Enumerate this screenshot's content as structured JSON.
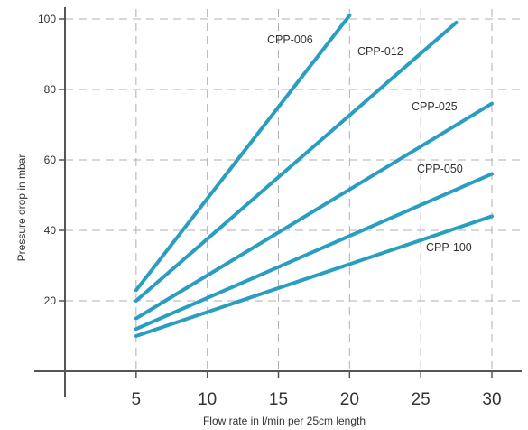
{
  "chart_data": {
    "type": "line",
    "xlabel": "Flow rate in  l/min per 25cm length",
    "ylabel": "Pressure drop in mbar",
    "xlim": [
      0,
      31.5
    ],
    "ylim": [
      0,
      102
    ],
    "x_ticks": [
      5,
      10,
      15,
      20,
      25,
      30
    ],
    "y_ticks": [
      20,
      40,
      60,
      80,
      100
    ],
    "grid": true,
    "line_color": "#2a9ec1",
    "grid_color": "#b0b0b0",
    "series": [
      {
        "name": "CPP-006",
        "x": [
          5,
          20
        ],
        "y": [
          23,
          101
        ]
      },
      {
        "name": "CPP-012",
        "x": [
          5,
          27.5
        ],
        "y": [
          20,
          99
        ]
      },
      {
        "name": "CPP-025",
        "x": [
          5,
          30
        ],
        "y": [
          15,
          76
        ]
      },
      {
        "name": "CPP-050",
        "x": [
          5,
          30
        ],
        "y": [
          12,
          56
        ]
      },
      {
        "name": "CPP-100",
        "x": [
          5,
          30
        ],
        "y": [
          10,
          44
        ]
      }
    ]
  }
}
